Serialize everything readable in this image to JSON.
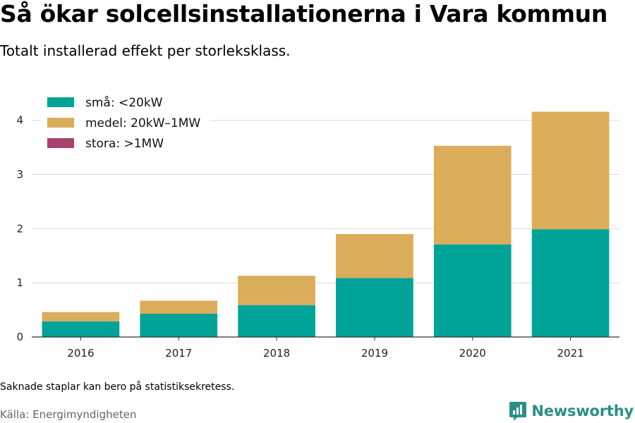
{
  "title": "Så ökar solcellsinstallationerna i Vara kommun",
  "subtitle": "Totalt installerad effekt per storleksklass.",
  "note": "Saknade staplar kan bero på statistiksekretess.",
  "source": "Källa: Energimyndigheten",
  "logo": {
    "text": "Newsworthy",
    "color": "#2a8f86",
    "icon": "newsworthy-logo-icon"
  },
  "chart_data": {
    "type": "bar",
    "stacked": true,
    "categories": [
      "2016",
      "2017",
      "2018",
      "2019",
      "2020",
      "2021"
    ],
    "series": [
      {
        "name": "små: <20kW",
        "color": "#00a398",
        "values": [
          0.29,
          0.43,
          0.59,
          1.09,
          1.71,
          1.99
        ]
      },
      {
        "name": "medel: 20kW–1MW",
        "color": "#dbad5a",
        "values": [
          0.17,
          0.24,
          0.54,
          0.81,
          1.82,
          2.17
        ]
      },
      {
        "name": "stora: >1MW",
        "color": "#a8416b",
        "values": [
          0,
          0,
          0,
          0,
          0,
          0
        ]
      }
    ],
    "ylim": [
      0,
      4.4
    ],
    "yticks": [
      "0",
      "1",
      "2",
      "3",
      "4"
    ],
    "grid": true,
    "legend_position": "top-left"
  }
}
